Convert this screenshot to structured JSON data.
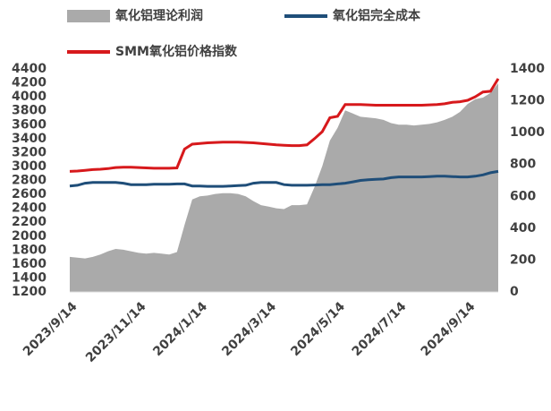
{
  "chart_data": {
    "type": "line",
    "categories": [
      "2023/9/14",
      null,
      null,
      null,
      null,
      null,
      null,
      null,
      null,
      "2023/11/14",
      null,
      null,
      null,
      null,
      null,
      null,
      null,
      "2024/1/14",
      null,
      null,
      null,
      null,
      null,
      null,
      null,
      null,
      "2024/3/14",
      null,
      null,
      null,
      null,
      null,
      null,
      null,
      null,
      "2024/5/14",
      null,
      null,
      null,
      null,
      null,
      null,
      null,
      "2024/7/14",
      null,
      null,
      null,
      null,
      null,
      null,
      null,
      null,
      "2024/9/14",
      null,
      null,
      null,
      null
    ],
    "series": [
      {
        "name": "氧化铝理论利润",
        "type": "area",
        "axis": "y2",
        "color": "#aaaaaa",
        "values": [
          220,
          215,
          210,
          220,
          235,
          255,
          270,
          265,
          255,
          245,
          240,
          245,
          240,
          235,
          250,
          420,
          580,
          600,
          605,
          615,
          620,
          620,
          615,
          600,
          570,
          545,
          535,
          525,
          520,
          545,
          545,
          550,
          660,
          790,
          950,
          1030,
          1140,
          1120,
          1100,
          1095,
          1090,
          1080,
          1060,
          1050,
          1050,
          1045,
          1050,
          1055,
          1065,
          1080,
          1100,
          1130,
          1180,
          1210,
          1220,
          1250,
          1310
        ]
      },
      {
        "name": "氧化铝完全成本",
        "type": "line",
        "color": "#1f4e79",
        "values": [
          2720,
          2730,
          2760,
          2770,
          2770,
          2770,
          2770,
          2760,
          2740,
          2740,
          2740,
          2745,
          2745,
          2745,
          2750,
          2750,
          2720,
          2720,
          2715,
          2715,
          2715,
          2720,
          2725,
          2730,
          2760,
          2770,
          2770,
          2770,
          2740,
          2730,
          2730,
          2730,
          2735,
          2740,
          2740,
          2750,
          2760,
          2780,
          2800,
          2810,
          2815,
          2820,
          2840,
          2850,
          2850,
          2850,
          2850,
          2855,
          2860,
          2860,
          2855,
          2850,
          2850,
          2860,
          2880,
          2910,
          2930
        ]
      },
      {
        "name": "SMM氧化铝价格指数",
        "type": "line",
        "color": "#d7191c",
        "values": [
          2930,
          2935,
          2945,
          2955,
          2960,
          2970,
          2985,
          2990,
          2990,
          2985,
          2980,
          2975,
          2975,
          2975,
          2980,
          3250,
          3320,
          3330,
          3340,
          3345,
          3350,
          3350,
          3350,
          3345,
          3340,
          3330,
          3320,
          3310,
          3305,
          3300,
          3300,
          3310,
          3400,
          3500,
          3700,
          3720,
          3890,
          3890,
          3890,
          3885,
          3880,
          3880,
          3880,
          3880,
          3880,
          3880,
          3880,
          3885,
          3890,
          3900,
          3920,
          3930,
          3950,
          4000,
          4070,
          4080,
          4260
        ]
      }
    ],
    "ylim": [
      1200,
      4400
    ],
    "yticks": [
      1200,
      1400,
      1600,
      1800,
      2000,
      2200,
      2400,
      2600,
      2800,
      3000,
      3200,
      3400,
      3600,
      3800,
      4000,
      4200,
      4400
    ],
    "y2lim": [
      0,
      1400
    ],
    "y2ticks": [
      0,
      200,
      400,
      600,
      800,
      1000,
      1200,
      1400
    ]
  }
}
